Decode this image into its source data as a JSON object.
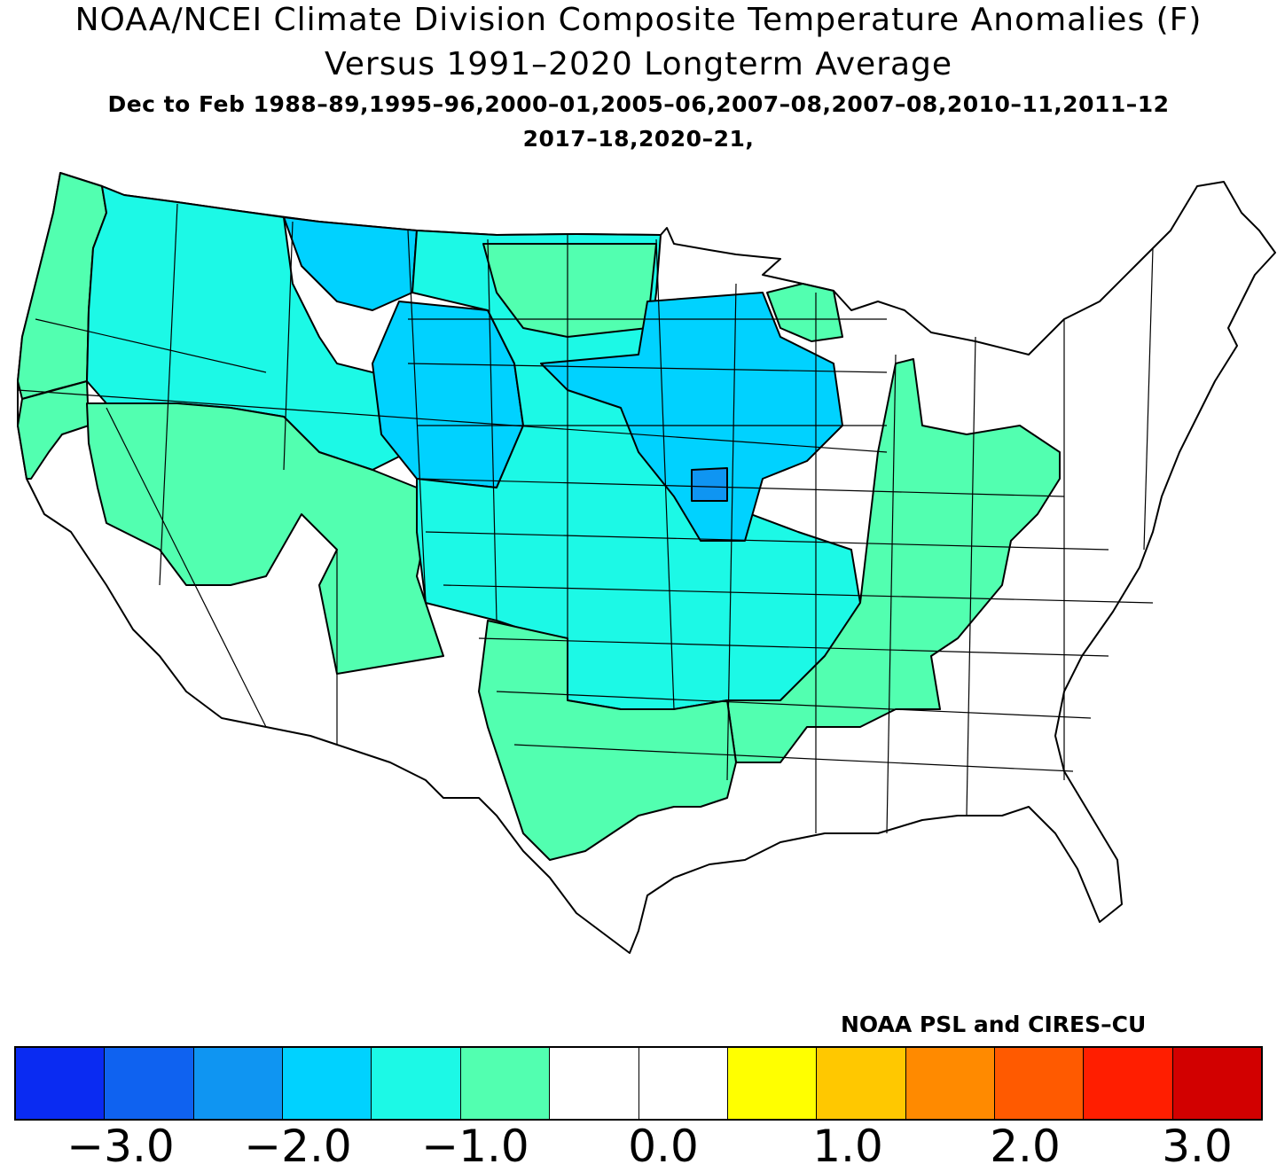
{
  "header": {
    "title_line1": "NOAA/NCEI Climate Division Composite Temperature Anomalies (F)",
    "title_line2": "Versus 1991–2020 Longterm Average",
    "subtitle_line1": "Dec to Feb  1988–89,1995–96,2000–01,2005–06,2007–08,2007–08,2010–11,2011–12",
    "subtitle_line2": "2017–18,2020–21,"
  },
  "credit": "NOAA PSL and CIRES–CU",
  "colorbar": {
    "colors": [
      "#0a2bf2",
      "#0f62f0",
      "#0f95f2",
      "#00d2ff",
      "#1cf9e6",
      "#52ffb0",
      "#ffffff",
      "#ffffff",
      "#ffff00",
      "#ffc800",
      "#ff8a00",
      "#ff5a00",
      "#ff1e00",
      "#d20000"
    ],
    "tick_labels": [
      "−3.0",
      "−2.0",
      "−1.0",
      "0.0",
      "1.0",
      "2.0",
      "3.0"
    ]
  },
  "map": {
    "legend_colors": {
      "neg_2_0_to_1_5": "#0f95f2",
      "neg_1_5_to_1_0": "#00d2ff",
      "neg_1_0_to_0_5": "#1cf9e6",
      "neg_0_5_to_0_0": "#52ffb0",
      "near_zero": "#ffffff"
    },
    "regions": [
      {
        "name": "pacific-northwest-coast",
        "category": "neg_0_5_to_0_0"
      },
      {
        "name": "northern-california-coast",
        "category": "neg_0_5_to_0_0"
      },
      {
        "name": "northern-rockies",
        "category": "neg_1_0_to_0_5"
      },
      {
        "name": "north-central-montana",
        "category": "neg_1_5_to_1_0"
      },
      {
        "name": "northern-plains-west",
        "category": "neg_1_5_to_1_0"
      },
      {
        "name": "great-basin-intermountain",
        "category": "neg_0_5_to_0_0"
      },
      {
        "name": "central-plains",
        "category": "neg_1_0_to_0_5"
      },
      {
        "name": "upper-midwest",
        "category": "neg_1_5_to_1_0"
      },
      {
        "name": "iowa-core",
        "category": "neg_2_0_to_1_5"
      },
      {
        "name": "ohio-valley-tennessee-mississippi",
        "category": "neg_0_5_to_0_0"
      },
      {
        "name": "southern-plains-texas",
        "category": "neg_0_5_to_0_0"
      },
      {
        "name": "southwest-and-california-interior",
        "category": "near_zero"
      },
      {
        "name": "northeast-and-southeast-coast",
        "category": "near_zero"
      }
    ]
  }
}
